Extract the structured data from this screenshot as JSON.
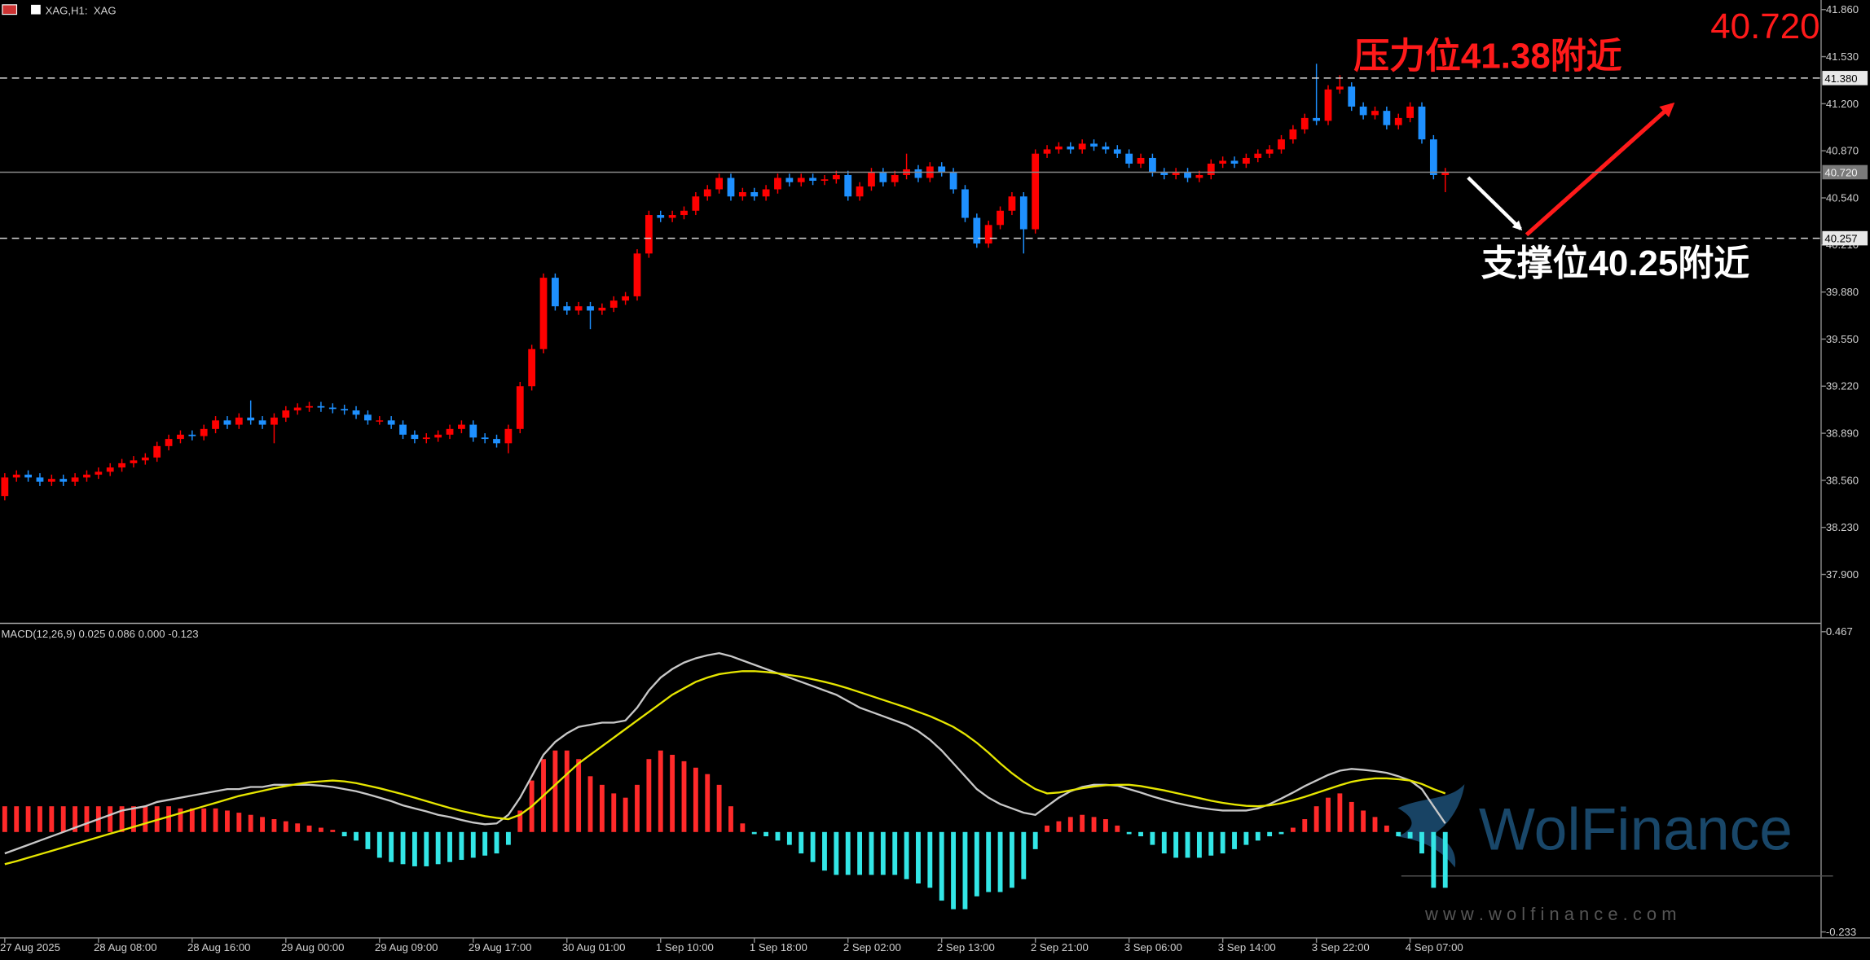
{
  "chart_data": [
    {
      "type": "candlestick",
      "title": "XAG,H1:  XAG",
      "categories": [
        "27 Aug 2025",
        null,
        null,
        null,
        null,
        null,
        null,
        null,
        "28 Aug 08:00",
        null,
        null,
        null,
        null,
        null,
        null,
        null,
        "28 Aug 16:00",
        null,
        null,
        null,
        null,
        null,
        null,
        null,
        "29 Aug 00:00",
        null,
        null,
        null,
        null,
        null,
        null,
        null,
        "29 Aug 09:00",
        null,
        null,
        null,
        null,
        null,
        null,
        null,
        "29 Aug 17:00",
        null,
        null,
        null,
        null,
        null,
        null,
        null,
        "30 Aug 01:00",
        null,
        null,
        null,
        null,
        null,
        null,
        null,
        "1 Sep 10:00",
        null,
        null,
        null,
        null,
        null,
        null,
        null,
        "1 Sep 18:00",
        null,
        null,
        null,
        null,
        null,
        null,
        null,
        "2 Sep 02:00",
        null,
        null,
        null,
        null,
        null,
        null,
        null,
        "2 Sep 13:00",
        null,
        null,
        null,
        null,
        null,
        null,
        null,
        "2 Sep 21:00",
        null,
        null,
        null,
        null,
        null,
        null,
        null,
        "3 Sep 06:00",
        null,
        null,
        null,
        null,
        null,
        null,
        null,
        "3 Sep 14:00",
        null,
        null,
        null,
        null,
        null,
        null,
        null,
        "3 Sep 22:00",
        null,
        null,
        null,
        null,
        null,
        null,
        null,
        "4 Sep 07:00",
        null,
        null,
        null
      ],
      "open": [
        38.45,
        38.58,
        38.6,
        38.58,
        38.55,
        38.57,
        38.55,
        38.58,
        38.6,
        38.62,
        38.65,
        38.68,
        38.7,
        38.72,
        38.8,
        38.85,
        38.88,
        38.87,
        38.92,
        38.98,
        38.95,
        39.0,
        38.98,
        38.95,
        39.0,
        39.05,
        39.07,
        39.08,
        39.07,
        39.06,
        39.05,
        39.02,
        38.98,
        38.98,
        38.95,
        38.88,
        38.85,
        38.86,
        38.88,
        38.92,
        38.95,
        38.86,
        38.85,
        38.82,
        38.92,
        39.22,
        39.48,
        39.98,
        39.78,
        39.75,
        39.78,
        39.75,
        39.77,
        39.82,
        39.85,
        40.15,
        40.42,
        40.4,
        40.42,
        40.45,
        40.55,
        40.6,
        40.68,
        40.55,
        40.58,
        40.55,
        40.6,
        40.68,
        40.65,
        40.68,
        40.66,
        40.67,
        40.7,
        40.55,
        40.62,
        40.72,
        40.65,
        40.7,
        40.74,
        40.68,
        40.76,
        40.72,
        40.6,
        40.4,
        40.22,
        40.35,
        40.45,
        40.55,
        40.32,
        40.85,
        40.88,
        40.9,
        40.88,
        40.92,
        40.9,
        40.88,
        40.85,
        40.78,
        40.82,
        40.72,
        40.7,
        40.72,
        40.68,
        40.7,
        40.78,
        40.8,
        40.78,
        40.82,
        40.85,
        40.88,
        40.95,
        41.02,
        41.1,
        41.08,
        41.3,
        41.32,
        41.18,
        41.12,
        41.15,
        41.05,
        41.1,
        41.18,
        40.95,
        40.7
      ],
      "high": [
        38.61,
        38.63,
        38.63,
        38.61,
        38.6,
        38.6,
        38.61,
        38.63,
        38.65,
        38.68,
        38.71,
        38.73,
        38.75,
        38.83,
        38.88,
        38.91,
        38.91,
        38.95,
        39.01,
        39.01,
        39.03,
        39.12,
        39.01,
        39.03,
        39.08,
        39.1,
        39.11,
        39.11,
        39.1,
        39.09,
        39.08,
        39.05,
        39.01,
        39.01,
        38.98,
        38.91,
        38.89,
        38.91,
        38.95,
        38.98,
        38.98,
        38.89,
        38.88,
        38.95,
        39.25,
        39.51,
        40.01,
        40.01,
        39.81,
        39.81,
        39.81,
        39.8,
        39.85,
        39.88,
        40.18,
        40.45,
        40.45,
        40.45,
        40.48,
        40.58,
        40.63,
        40.71,
        40.71,
        40.61,
        40.61,
        40.63,
        40.71,
        40.71,
        40.71,
        40.71,
        40.7,
        40.73,
        40.73,
        40.65,
        40.75,
        40.75,
        40.73,
        40.85,
        40.77,
        40.79,
        40.79,
        40.75,
        40.63,
        40.43,
        40.38,
        40.48,
        40.58,
        40.58,
        40.88,
        40.91,
        40.93,
        40.93,
        40.95,
        40.95,
        40.93,
        40.91,
        40.88,
        40.85,
        40.85,
        40.75,
        40.75,
        40.75,
        40.73,
        40.81,
        40.83,
        40.83,
        40.85,
        40.88,
        40.91,
        40.98,
        41.05,
        41.13,
        41.48,
        41.33,
        41.4,
        41.35,
        41.21,
        41.18,
        41.18,
        41.13,
        41.21,
        41.21,
        40.98,
        40.75
      ],
      "low": [
        38.42,
        38.55,
        38.55,
        38.52,
        38.52,
        38.52,
        38.52,
        38.55,
        38.57,
        38.59,
        38.62,
        38.65,
        38.67,
        38.69,
        38.77,
        38.82,
        38.84,
        38.84,
        38.89,
        38.92,
        38.92,
        38.95,
        38.92,
        38.82,
        38.97,
        39.02,
        39.04,
        39.04,
        39.03,
        39.02,
        38.99,
        38.95,
        38.95,
        38.92,
        38.85,
        38.82,
        38.82,
        38.83,
        38.85,
        38.89,
        38.83,
        38.82,
        38.79,
        38.75,
        38.89,
        39.19,
        39.45,
        39.75,
        39.72,
        39.72,
        39.62,
        39.72,
        39.74,
        39.79,
        39.82,
        40.12,
        40.37,
        40.37,
        40.39,
        40.42,
        40.52,
        40.57,
        40.52,
        40.52,
        40.52,
        40.52,
        40.57,
        40.62,
        40.62,
        40.63,
        40.63,
        40.64,
        40.52,
        40.52,
        40.59,
        40.62,
        40.62,
        40.67,
        40.65,
        40.65,
        40.69,
        40.57,
        40.37,
        40.19,
        40.19,
        40.32,
        40.42,
        40.15,
        40.29,
        40.82,
        40.85,
        40.85,
        40.85,
        40.87,
        40.85,
        40.82,
        40.75,
        40.75,
        40.69,
        40.67,
        40.67,
        40.65,
        40.65,
        40.67,
        40.75,
        40.75,
        40.75,
        40.79,
        40.82,
        40.85,
        40.92,
        40.99,
        41.05,
        41.05,
        41.27,
        41.15,
        41.09,
        41.09,
        41.02,
        41.02,
        41.07,
        40.92,
        40.67,
        40.58
      ],
      "close": [
        38.58,
        38.6,
        38.58,
        38.55,
        38.57,
        38.55,
        38.58,
        38.6,
        38.62,
        38.65,
        38.68,
        38.7,
        38.72,
        38.8,
        38.85,
        38.88,
        38.87,
        38.92,
        38.98,
        38.95,
        39.0,
        38.98,
        38.95,
        39.0,
        39.05,
        39.07,
        39.08,
        39.07,
        39.06,
        39.05,
        39.02,
        38.98,
        38.98,
        38.95,
        38.88,
        38.85,
        38.86,
        38.88,
        38.92,
        38.95,
        38.86,
        38.85,
        38.82,
        38.92,
        39.22,
        39.48,
        39.98,
        39.78,
        39.75,
        39.78,
        39.75,
        39.77,
        39.82,
        39.85,
        40.15,
        40.42,
        40.4,
        40.42,
        40.45,
        40.55,
        40.6,
        40.68,
        40.55,
        40.58,
        40.55,
        40.6,
        40.68,
        40.65,
        40.68,
        40.66,
        40.67,
        40.7,
        40.55,
        40.62,
        40.72,
        40.65,
        40.7,
        40.74,
        40.68,
        40.76,
        40.72,
        40.6,
        40.4,
        40.22,
        40.35,
        40.45,
        40.55,
        40.32,
        40.85,
        40.88,
        40.9,
        40.88,
        40.92,
        40.9,
        40.88,
        40.85,
        40.78,
        40.82,
        40.72,
        40.7,
        40.72,
        40.68,
        40.7,
        40.78,
        40.8,
        40.78,
        40.82,
        40.85,
        40.88,
        40.95,
        41.02,
        41.1,
        41.08,
        41.3,
        41.32,
        41.18,
        41.12,
        41.15,
        41.05,
        41.1,
        41.18,
        40.95,
        40.7,
        40.72
      ],
      "up_color": "#ff0000",
      "down_color": "#1e90ff",
      "ylim": [
        37.566,
        41.927
      ],
      "yticks": [
        {
          "value": 41.86,
          "label": "41.860"
        },
        {
          "value": 41.53,
          "label": "41.530"
        },
        {
          "value": 41.2,
          "label": "41.200"
        },
        {
          "value": 40.87,
          "label": "40.870"
        },
        {
          "value": 40.54,
          "label": "40.540"
        },
        {
          "value": 40.21,
          "label": "40.210"
        },
        {
          "value": 39.88,
          "label": "39.880"
        },
        {
          "value": 39.55,
          "label": "39.550"
        },
        {
          "value": 39.22,
          "label": "39.220"
        },
        {
          "value": 38.89,
          "label": "38.890"
        },
        {
          "value": 38.56,
          "label": "38.560"
        },
        {
          "value": 38.23,
          "label": "38.230"
        },
        {
          "value": 37.9,
          "label": "37.900"
        }
      ],
      "levels": [
        {
          "value": 41.38,
          "label": "41.380",
          "style": "dashed"
        },
        {
          "value": 40.72,
          "label": "40.720",
          "style": "solid"
        },
        {
          "value": 40.257,
          "label": "40.257",
          "style": "dashed"
        }
      ],
      "annotations": [
        {
          "text": "压力位41.38附近",
          "color": "#ff1a1a"
        },
        {
          "text": "40.720",
          "color": "#ff1a1a"
        },
        {
          "text": "支撑位40.25附近",
          "color": "#ffffff"
        }
      ],
      "watermark": {
        "brand": "WolFinance",
        "url": "w w w . w o l f i n a n c e . c o m"
      }
    },
    {
      "type": "macd",
      "title": "MACD(12,26,9) 0.025 0.086 0.000 -0.123",
      "ylim": [
        -0.247,
        0.481
      ],
      "yticks": [
        0.467,
        -0.233
      ],
      "series": [
        {
          "kind": "histogram",
          "color": "#ff2a2a",
          "negative_color": "#33e6e6",
          "values": [
            0.06,
            0.06,
            0.06,
            0.06,
            0.06,
            0.06,
            0.06,
            0.06,
            0.06,
            0.06,
            0.06,
            0.06,
            0.06,
            0.06,
            0.06,
            0.055,
            0.055,
            0.055,
            0.055,
            0.05,
            0.045,
            0.04,
            0.035,
            0.03,
            0.025,
            0.02,
            0.015,
            0.01,
            0.005,
            -0.01,
            -0.02,
            -0.04,
            -0.06,
            -0.07,
            -0.075,
            -0.08,
            -0.08,
            -0.075,
            -0.07,
            -0.065,
            -0.06,
            -0.055,
            -0.05,
            -0.03,
            0.05,
            0.12,
            0.17,
            0.19,
            0.19,
            0.17,
            0.13,
            0.11,
            0.09,
            0.08,
            0.11,
            0.17,
            0.19,
            0.18,
            0.165,
            0.15,
            0.135,
            0.11,
            0.06,
            0.02,
            -0.005,
            -0.01,
            -0.02,
            -0.03,
            -0.05,
            -0.07,
            -0.09,
            -0.1,
            -0.1,
            -0.1,
            -0.1,
            -0.1,
            -0.1,
            -0.11,
            -0.12,
            -0.13,
            -0.16,
            -0.18,
            -0.18,
            -0.15,
            -0.14,
            -0.14,
            -0.13,
            -0.11,
            -0.04,
            0.015,
            0.025,
            0.035,
            0.04,
            0.035,
            0.03,
            0.015,
            -0.005,
            -0.01,
            -0.03,
            -0.05,
            -0.06,
            -0.06,
            -0.06,
            -0.055,
            -0.05,
            -0.04,
            -0.03,
            -0.02,
            -0.01,
            -0.005,
            0.01,
            0.03,
            0.06,
            0.08,
            0.09,
            0.07,
            0.05,
            0.035,
            0.015,
            -0.01,
            -0.015,
            -0.05,
            -0.13,
            -0.13
          ]
        },
        {
          "kind": "line",
          "color": "#c8c8c8",
          "values": [
            -0.05,
            -0.04,
            -0.03,
            -0.02,
            -0.01,
            0.0,
            0.01,
            0.02,
            0.03,
            0.04,
            0.05,
            0.055,
            0.06,
            0.07,
            0.075,
            0.08,
            0.085,
            0.09,
            0.095,
            0.1,
            0.1,
            0.105,
            0.105,
            0.11,
            0.11,
            0.11,
            0.11,
            0.108,
            0.105,
            0.1,
            0.095,
            0.088,
            0.08,
            0.072,
            0.062,
            0.055,
            0.048,
            0.04,
            0.035,
            0.028,
            0.022,
            0.018,
            0.02,
            0.04,
            0.08,
            0.13,
            0.18,
            0.21,
            0.23,
            0.245,
            0.25,
            0.255,
            0.255,
            0.26,
            0.29,
            0.33,
            0.36,
            0.38,
            0.395,
            0.405,
            0.412,
            0.417,
            0.41,
            0.4,
            0.39,
            0.38,
            0.37,
            0.36,
            0.35,
            0.34,
            0.33,
            0.32,
            0.305,
            0.29,
            0.28,
            0.27,
            0.26,
            0.25,
            0.235,
            0.215,
            0.19,
            0.16,
            0.13,
            0.1,
            0.08,
            0.065,
            0.055,
            0.045,
            0.04,
            0.06,
            0.08,
            0.095,
            0.105,
            0.11,
            0.11,
            0.108,
            0.1,
            0.092,
            0.083,
            0.075,
            0.068,
            0.062,
            0.057,
            0.053,
            0.05,
            0.05,
            0.05,
            0.055,
            0.065,
            0.078,
            0.092,
            0.107,
            0.12,
            0.133,
            0.143,
            0.147,
            0.145,
            0.142,
            0.138,
            0.13,
            0.12,
            0.1,
            0.06,
            0.02
          ]
        },
        {
          "kind": "line",
          "color": "#e6e600",
          "values": [
            -0.075,
            -0.068,
            -0.06,
            -0.052,
            -0.044,
            -0.036,
            -0.028,
            -0.02,
            -0.012,
            -0.004,
            0.004,
            0.012,
            0.02,
            0.028,
            0.036,
            0.044,
            0.052,
            0.06,
            0.068,
            0.076,
            0.084,
            0.09,
            0.096,
            0.102,
            0.107,
            0.112,
            0.116,
            0.118,
            0.12,
            0.118,
            0.114,
            0.108,
            0.102,
            0.095,
            0.088,
            0.08,
            0.072,
            0.064,
            0.056,
            0.049,
            0.043,
            0.037,
            0.033,
            0.03,
            0.04,
            0.06,
            0.085,
            0.11,
            0.135,
            0.16,
            0.18,
            0.2,
            0.22,
            0.24,
            0.26,
            0.28,
            0.3,
            0.32,
            0.335,
            0.35,
            0.36,
            0.368,
            0.372,
            0.375,
            0.375,
            0.373,
            0.37,
            0.366,
            0.362,
            0.356,
            0.35,
            0.343,
            0.335,
            0.326,
            0.317,
            0.308,
            0.299,
            0.29,
            0.28,
            0.27,
            0.258,
            0.245,
            0.228,
            0.208,
            0.185,
            0.16,
            0.137,
            0.117,
            0.1,
            0.09,
            0.092,
            0.097,
            0.102,
            0.106,
            0.109,
            0.11,
            0.11,
            0.107,
            0.102,
            0.097,
            0.091,
            0.085,
            0.079,
            0.073,
            0.068,
            0.064,
            0.061,
            0.06,
            0.062,
            0.067,
            0.074,
            0.082,
            0.091,
            0.1,
            0.109,
            0.117,
            0.122,
            0.125,
            0.125,
            0.123,
            0.12,
            0.112,
            0.1,
            0.09
          ]
        }
      ]
    }
  ]
}
